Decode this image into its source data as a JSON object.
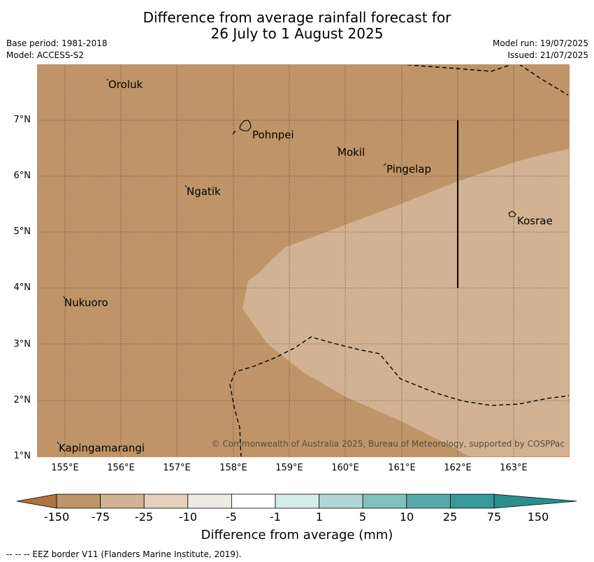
{
  "title_line1": "Difference from average rainfall forecast for",
  "title_line2": "26 July to 1 August 2025",
  "meta": {
    "base_period": "Base period: 1981-2018",
    "model": "Model: ACCESS-S2",
    "model_run": "Model run: 19/07/2025",
    "issued": "Issued: 21/07/2025"
  },
  "map": {
    "lon_labels": [
      "155°E",
      "156°E",
      "157°E",
      "158°E",
      "159°E",
      "160°E",
      "161°E",
      "162°E",
      "163°E"
    ],
    "lat_labels": [
      "7°N",
      "6°N",
      "5°N",
      "4°N",
      "3°N",
      "2°N",
      "1°N"
    ],
    "places": {
      "oroluk": "Oroluk",
      "pohnpei": "Pohnpei",
      "mokil": "Mokil",
      "pingelap": "Pingelap",
      "ngatik": "Ngatik",
      "kosrae": "Kosrae",
      "nukuoro": "Nukuoro",
      "kapingamarangi": "Kapingamarangi"
    },
    "copyright": "© Commonwealth of Australia 2025, Bureau of Meteorology, supported by COSPPac"
  },
  "colorbar": {
    "title": "Difference from average (mm)",
    "labels": [
      "-150",
      "-75",
      "-25",
      "-10",
      "-5",
      "-1",
      "1",
      "5",
      "10",
      "25",
      "75",
      "150"
    ],
    "colors": [
      "#ad7440",
      "#bf9468",
      "#d2b292",
      "#e5d0be",
      "#eeebe6",
      "#ffffff",
      "#d6ece9",
      "#b0d6d5",
      "#82c0bd",
      "#56aaa7",
      "#36999a",
      "#2a8f8e"
    ]
  },
  "footer": "--  --  -- EEZ border V11 (Flanders Marine Institute, 2019)."
}
